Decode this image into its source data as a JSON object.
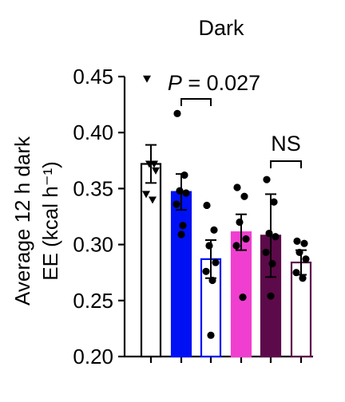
{
  "chart_data": {
    "type": "bar",
    "title": "Dark",
    "ylabel_line1": "Average 12 h dark",
    "ylabel_line2": "EE (kcal h⁻¹)",
    "ylim": [
      0.2,
      0.45
    ],
    "yticks": [
      0.2,
      0.25,
      0.3,
      0.35,
      0.4,
      0.45
    ],
    "ytick_labels": [
      "0.20",
      "0.25",
      "0.30",
      "0.35",
      "0.40",
      "0.45"
    ],
    "bars": [
      {
        "fill": "#ffffff",
        "edge": "#000000",
        "mean": 0.372,
        "err": 0.017,
        "points": [
          0.448,
          0.372,
          0.372,
          0.366,
          0.345,
          0.34
        ],
        "marker": "triangle-down"
      },
      {
        "fill": "#0010f5",
        "edge": "#0010f5",
        "mean": 0.347,
        "err": 0.016,
        "points": [
          0.417,
          0.362,
          0.348,
          0.346,
          0.336,
          0.317,
          0.309
        ],
        "marker": "circle"
      },
      {
        "fill": "#ffffff",
        "edge": "#0010f5",
        "mean": 0.287,
        "err": 0.017,
        "points": [
          0.335,
          0.313,
          0.299,
          0.284,
          0.276,
          0.268,
          0.219
        ],
        "marker": "circle"
      },
      {
        "fill": "#f03fd0",
        "edge": "#f03fd0",
        "mean": 0.311,
        "err": 0.016,
        "points": [
          0.351,
          0.343,
          0.32,
          0.305,
          0.299,
          0.253
        ],
        "marker": "circle"
      },
      {
        "fill": "#5c0a4a",
        "edge": "#5c0a4a",
        "mean": 0.308,
        "err": 0.037,
        "points": [
          0.358,
          0.338,
          0.31,
          0.307,
          0.293,
          0.283,
          0.254
        ],
        "marker": "circle"
      },
      {
        "fill": "#ffffff",
        "edge": "#5c0a4a",
        "mean": 0.284,
        "err": 0.011,
        "points": [
          0.303,
          0.301,
          0.293,
          0.287,
          0.275,
          0.27
        ],
        "marker": "circle"
      }
    ],
    "annotations": [
      {
        "text": "P = 0.027",
        "from": 1,
        "to": 2
      },
      {
        "text": "NS",
        "from": 4,
        "to": 5
      }
    ]
  }
}
